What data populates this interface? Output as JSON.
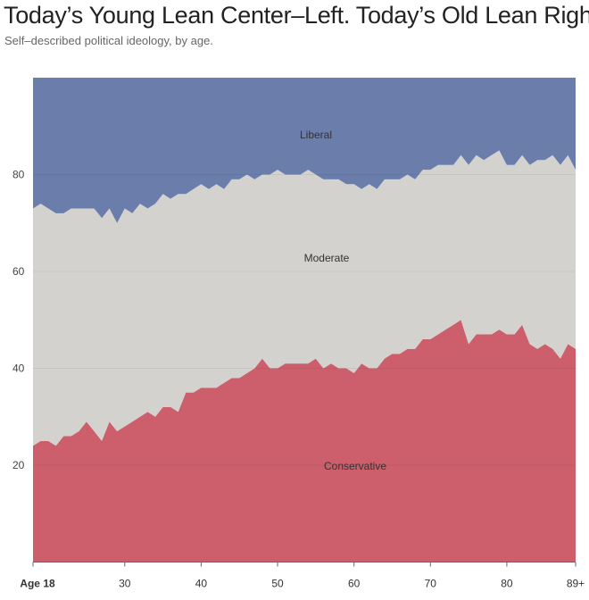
{
  "title": "Today’s Young Lean Center–Left. Today’s Old Lean Right.",
  "subtitle": "Self–described political ideology, by age.",
  "chart_data": {
    "type": "area",
    "stacked": true,
    "title": "Today’s Young Lean Center–Left. Today’s Old Lean Right.",
    "subtitle": "Self–described political ideology, by age.",
    "x_start": 18,
    "x_end": 89,
    "ylim": [
      0,
      100
    ],
    "yticks": [
      "20",
      "40",
      "60",
      "80"
    ],
    "xticks": [
      {
        "age": 18,
        "label": "Age 18"
      },
      {
        "age": 30,
        "label": "30"
      },
      {
        "age": 40,
        "label": "40"
      },
      {
        "age": 50,
        "label": "50"
      },
      {
        "age": 60,
        "label": "60"
      },
      {
        "age": 70,
        "label": "70"
      },
      {
        "age": 80,
        "label": "80"
      },
      {
        "age": 89,
        "label": "89+"
      }
    ],
    "grid": true,
    "series": [
      {
        "name": "Conservative",
        "color": "#cc5f6b",
        "values": [
          24,
          25,
          25,
          24,
          26,
          26,
          27,
          29,
          27,
          25,
          29,
          27,
          28,
          29,
          30,
          31,
          30,
          32,
          32,
          31,
          35,
          35,
          36,
          36,
          36,
          37,
          38,
          38,
          39,
          40,
          42,
          40,
          40,
          41,
          41,
          41,
          41,
          42,
          40,
          41,
          40,
          40,
          39,
          41,
          40,
          40,
          42,
          43,
          43,
          44,
          44,
          46,
          46,
          47,
          48,
          49,
          50,
          45,
          47,
          47,
          47,
          48,
          47,
          47,
          49,
          45,
          44,
          45,
          44,
          42,
          45,
          44
        ]
      },
      {
        "name": "Moderate",
        "color": "#d3d2ce",
        "values": [
          49,
          49,
          48,
          48,
          46,
          47,
          46,
          44,
          46,
          46,
          44,
          43,
          45,
          43,
          44,
          42,
          44,
          44,
          43,
          45,
          41,
          42,
          42,
          41,
          42,
          40,
          41,
          41,
          41,
          39,
          38,
          40,
          41,
          39,
          39,
          39,
          40,
          38,
          39,
          38,
          39,
          38,
          39,
          36,
          38,
          37,
          37,
          36,
          36,
          36,
          35,
          35,
          35,
          35,
          34,
          33,
          34,
          37,
          37,
          36,
          37,
          37,
          35,
          35,
          35,
          37,
          39,
          38,
          40,
          40,
          39,
          37
        ]
      },
      {
        "name": "Liberal",
        "color": "#6a7dab",
        "values": [
          27,
          26,
          27,
          28,
          28,
          27,
          27,
          27,
          27,
          29,
          27,
          30,
          27,
          28,
          26,
          27,
          26,
          24,
          25,
          24,
          24,
          23,
          22,
          23,
          22,
          23,
          21,
          21,
          20,
          21,
          20,
          20,
          19,
          20,
          20,
          20,
          19,
          20,
          21,
          21,
          21,
          22,
          22,
          23,
          22,
          23,
          21,
          21,
          21,
          20,
          21,
          19,
          19,
          18,
          18,
          18,
          16,
          18,
          16,
          17,
          16,
          15,
          18,
          18,
          16,
          18,
          17,
          17,
          16,
          18,
          16,
          19
        ]
      }
    ]
  }
}
